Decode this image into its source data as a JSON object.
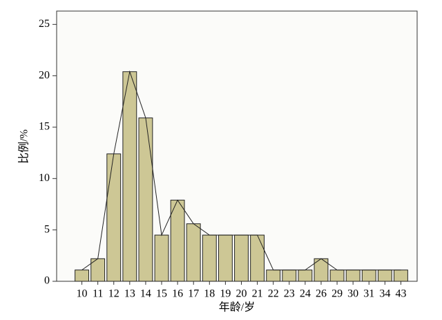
{
  "chart_data": {
    "type": "bar",
    "line_overlay": true,
    "categories": [
      "10",
      "11",
      "12",
      "13",
      "14",
      "15",
      "16",
      "17",
      "18",
      "19",
      "20",
      "21",
      "22",
      "23",
      "24",
      "26",
      "29",
      "30",
      "31",
      "34",
      "43"
    ],
    "values": [
      1.1,
      2.2,
      12.4,
      20.4,
      15.9,
      4.5,
      7.9,
      5.6,
      4.5,
      4.5,
      4.5,
      4.5,
      1.1,
      1.1,
      1.1,
      2.2,
      1.1,
      1.1,
      1.1,
      1.1,
      1.1
    ],
    "color": "#cdc795",
    "ylim": [
      0,
      26.3
    ],
    "yticks": [
      0,
      5,
      10,
      15,
      20,
      25
    ],
    "y_label": "比例/%",
    "x_label": "年龄/岁"
  }
}
